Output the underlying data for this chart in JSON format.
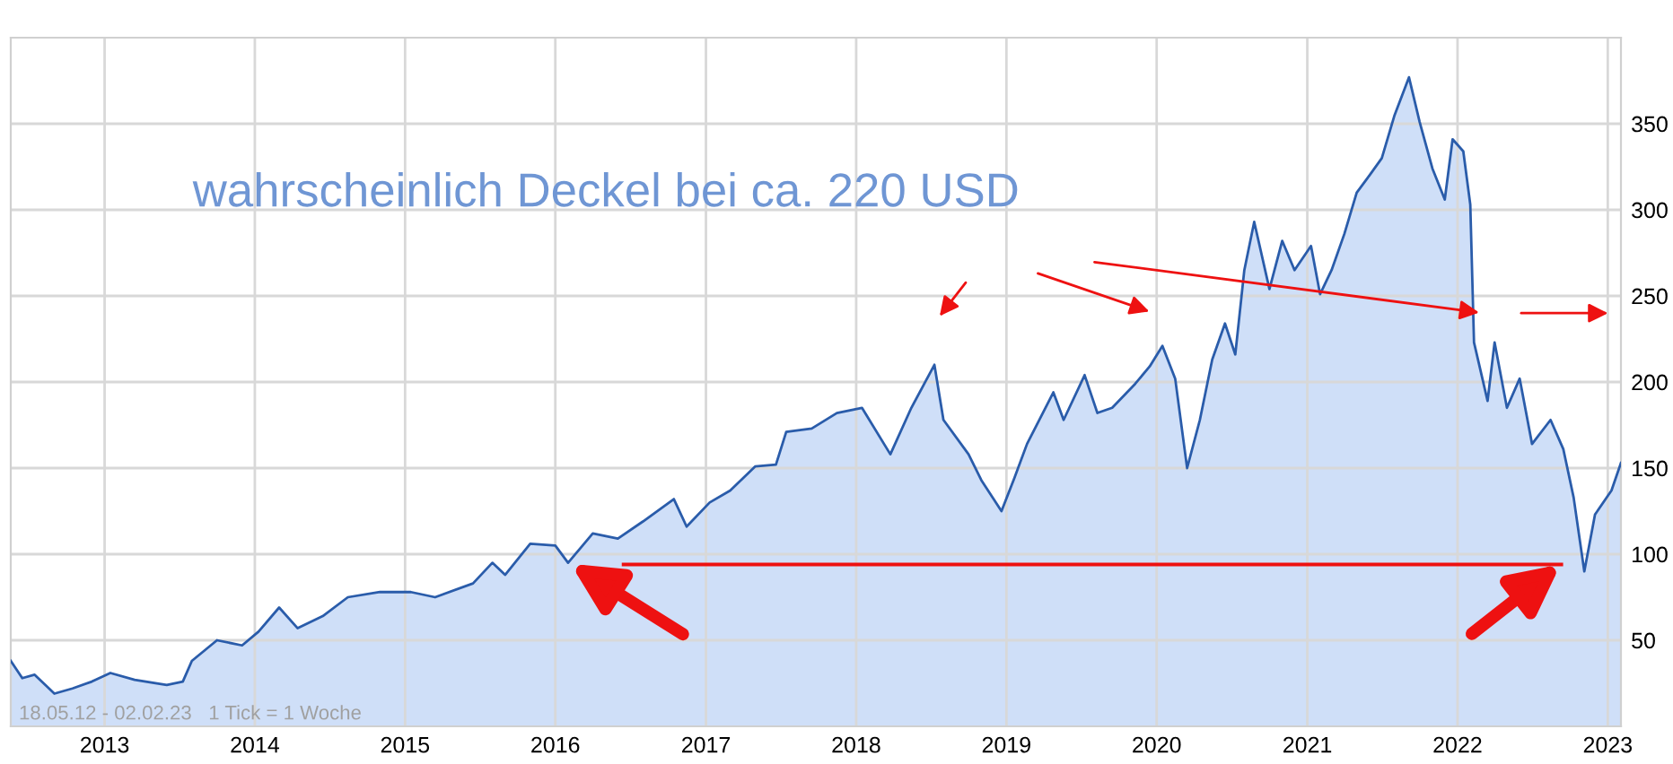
{
  "chart_data": {
    "type": "area",
    "x": [
      "2012-05-18",
      "2012-06-15",
      "2012-07-15",
      "2012-09-01",
      "2012-10-15",
      "2012-12-01",
      "2013-01-15",
      "2013-03-15",
      "2013-06-01",
      "2013-07-10",
      "2013-08-01",
      "2013-10-01",
      "2013-12-01",
      "2014-01-10",
      "2014-03-01",
      "2014-04-15",
      "2014-06-15",
      "2014-08-15",
      "2014-11-01",
      "2015-01-15",
      "2015-03-15",
      "2015-06-15",
      "2015-08-01",
      "2015-09-01",
      "2015-11-01",
      "2016-01-01",
      "2016-02-01",
      "2016-04-01",
      "2016-06-01",
      "2016-08-01",
      "2016-10-15",
      "2016-11-15",
      "2017-01-10",
      "2017-03-01",
      "2017-05-01",
      "2017-06-20",
      "2017-07-15",
      "2017-09-15",
      "2017-11-15",
      "2018-01-15",
      "2018-03-25",
      "2018-05-15",
      "2018-07-10",
      "2018-08-01",
      "2018-10-01",
      "2018-11-01",
      "2018-12-20",
      "2019-01-20",
      "2019-02-20",
      "2019-04-25",
      "2019-05-20",
      "2019-07-10",
      "2019-08-10",
      "2019-09-15",
      "2019-11-10",
      "2019-12-15",
      "2020-01-15",
      "2020-02-15",
      "2020-03-15",
      "2020-04-15",
      "2020-05-15",
      "2020-06-15",
      "2020-07-10",
      "2020-08-01",
      "2020-08-25",
      "2020-10-01",
      "2020-11-01",
      "2020-12-01",
      "2021-01-10",
      "2021-02-01",
      "2021-03-01",
      "2021-04-01",
      "2021-05-01",
      "2021-06-01",
      "2021-07-01",
      "2021-08-01",
      "2021-09-05",
      "2021-10-01",
      "2021-11-01",
      "2021-12-01",
      "2021-12-20",
      "2022-01-15",
      "2022-02-01",
      "2022-02-10",
      "2022-03-15",
      "2022-04-01",
      "2022-05-01",
      "2022-06-01",
      "2022-07-01",
      "2022-08-15",
      "2022-09-15",
      "2022-10-10",
      "2022-11-05",
      "2022-12-01",
      "2023-01-10",
      "2023-02-02"
    ],
    "series": [
      {
        "color": "#2a5caa",
        "values": [
          38,
          28,
          30,
          19,
          22,
          26,
          31,
          27,
          24,
          26,
          38,
          50,
          47,
          55,
          69,
          57,
          64,
          75,
          78,
          78,
          75,
          83,
          95,
          88,
          106,
          105,
          95,
          112,
          109,
          119,
          132,
          116,
          130,
          137,
          151,
          152,
          171,
          173,
          182,
          185,
          158,
          185,
          210,
          178,
          158,
          143,
          125,
          144,
          164,
          194,
          178,
          204,
          182,
          185,
          199,
          209,
          221,
          202,
          150,
          178,
          213,
          234,
          216,
          265,
          293,
          254,
          282,
          265,
          279,
          251,
          265,
          286,
          310,
          320,
          330,
          355,
          377,
          351,
          324,
          306,
          341,
          334,
          303,
          223,
          189,
          223,
          185,
          202,
          164,
          178,
          161,
          133,
          90,
          123,
          137,
          153
        ]
      },
      {
        "type": "line",
        "color": "#ee1111",
        "x": [
          "2016-06-15",
          "2022-09-10"
        ],
        "values": [
          94,
          94
        ]
      }
    ],
    "xlim": [
      "2012-05-18",
      "2023-02-02"
    ],
    "xticks": [
      "2013",
      "2014",
      "2015",
      "2016",
      "2017",
      "2018",
      "2019",
      "2020",
      "2021",
      "2022",
      "2023"
    ],
    "ylim": [
      0,
      400
    ],
    "yticks": [
      50,
      100,
      150,
      200,
      250,
      300,
      350
    ],
    "grid": true,
    "annotations": [
      "wahrscheinlich Deckel bei ca. 220 USD",
      "18.05.12 - 02.02.23   1 Tick = 1 Woche"
    ]
  }
}
